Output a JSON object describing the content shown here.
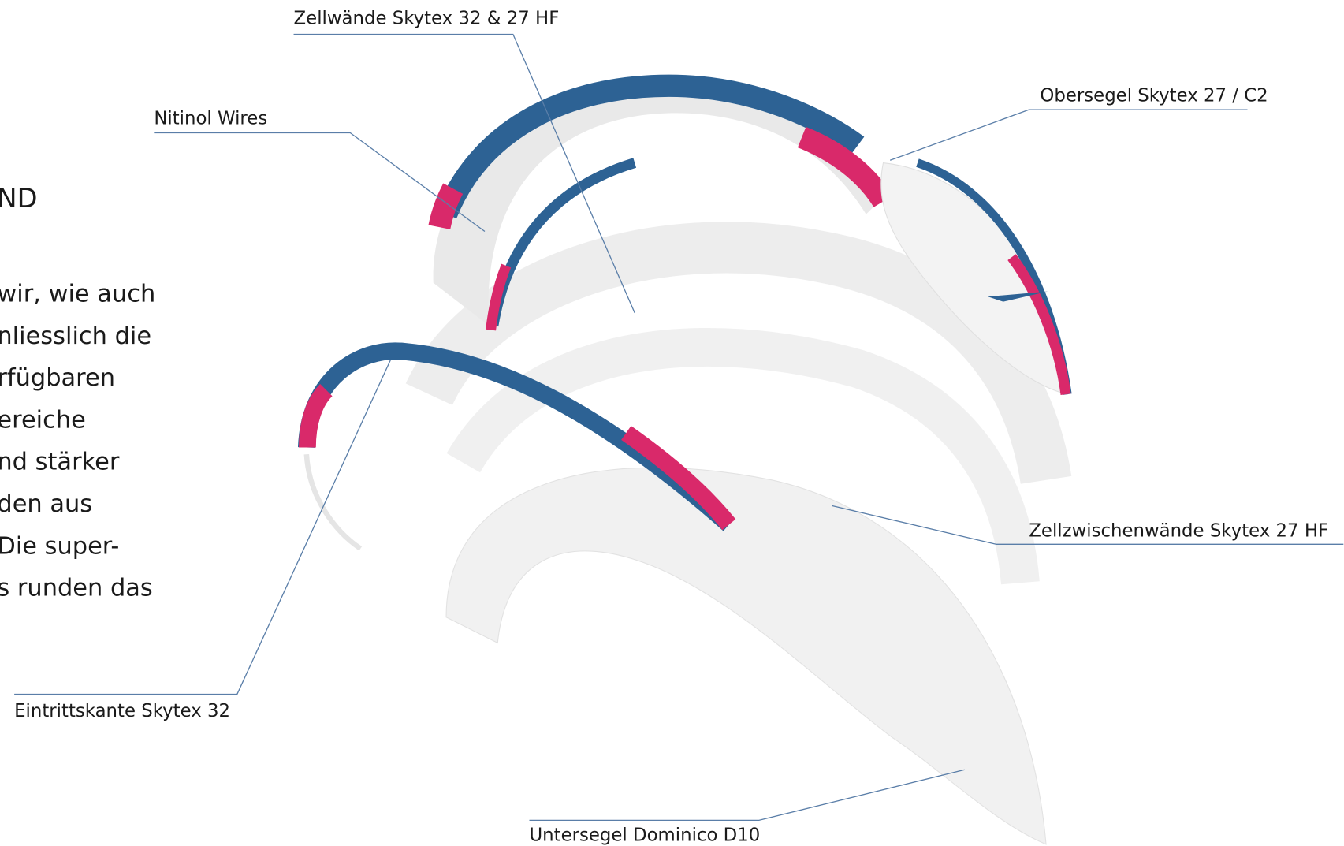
{
  "heading": "ND",
  "paragraph": [
    "wir, wie auch",
    "nliesslich die",
    "rfügbaren",
    "ereiche",
    "nd stärker",
    "den aus",
    "Die super-",
    "s runden das"
  ],
  "labels": [
    "Zellwände Skytex 32 & 27 HF",
    "Nitinol Wires",
    "Obersegel Skytex 27 / C2",
    "Zellzwischenwände Skytex 27 HF",
    "Eintrittskante Skytex 32",
    "Untersegel Dominico D10"
  ]
}
